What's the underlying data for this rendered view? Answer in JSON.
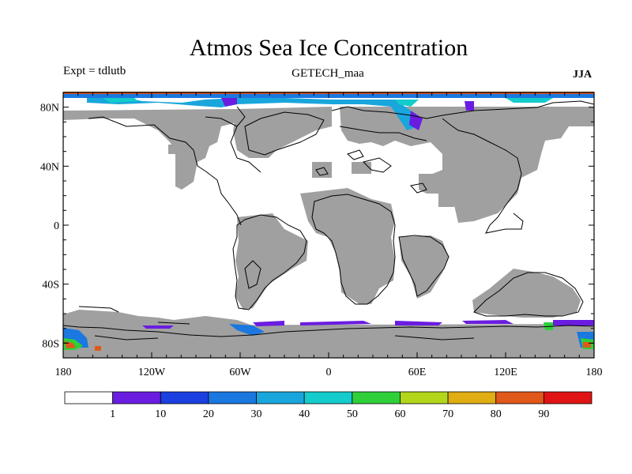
{
  "title": "Atmos Sea Ice Concentration",
  "experiment_label": "Expt = tdlutb",
  "source_label": "GETECH_maa",
  "season_label": "JJA",
  "lat_ticks": [
    {
      "value": 80,
      "label": "80N"
    },
    {
      "value": 40,
      "label": "40N"
    },
    {
      "value": 0,
      "label": "0"
    },
    {
      "value": -40,
      "label": "40S"
    },
    {
      "value": -80,
      "label": "80S"
    }
  ],
  "lon_ticks": [
    {
      "value": -180,
      "label": "180"
    },
    {
      "value": -120,
      "label": "120W"
    },
    {
      "value": -60,
      "label": "60W"
    },
    {
      "value": 0,
      "label": "0"
    },
    {
      "value": 60,
      "label": "60E"
    },
    {
      "value": 120,
      "label": "120E"
    },
    {
      "value": 180,
      "label": "180"
    }
  ],
  "colorbar": {
    "levels": [
      "1",
      "10",
      "20",
      "30",
      "40",
      "50",
      "60",
      "70",
      "80",
      "90"
    ],
    "colors": [
      "#ffffff",
      "#6a1de0",
      "#1b3fe0",
      "#1a78e0",
      "#19a6dc",
      "#14cccc",
      "#2fcf3a",
      "#b3d61a",
      "#e0ad12",
      "#e0581a",
      "#e01414"
    ]
  },
  "map_colors": {
    "land": "#a0a0a0",
    "coast": "#000000",
    "ocean": "#ffffff"
  }
}
